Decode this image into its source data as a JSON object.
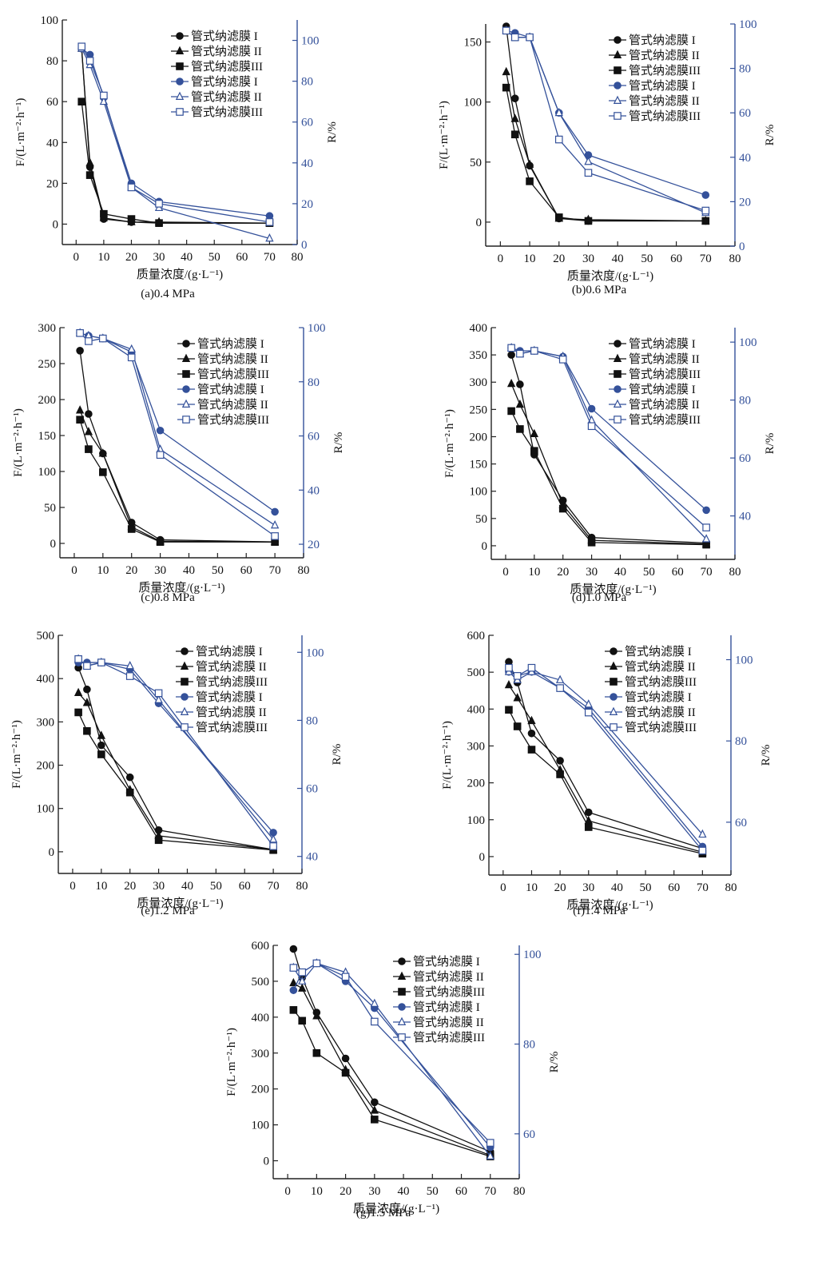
{
  "colors": {
    "black_series": "#111111",
    "blue_series": "#34519a",
    "right_axis": "#34519a"
  },
  "chart_data": [
    {
      "id": "a",
      "type": "line",
      "caption": "(a)0.4 MPa",
      "xlabel": "质量浓度/(g·L⁻¹)",
      "ylabel": "F/(L·m⁻²·h⁻¹)",
      "y2label": "R/%",
      "xlim": [
        -5,
        80
      ],
      "xticks": [
        0,
        10,
        20,
        30,
        40,
        50,
        60,
        70,
        80
      ],
      "ylim": [
        -10,
        100
      ],
      "yticks": [
        0,
        20,
        40,
        60,
        80,
        100
      ],
      "y2lim": [
        0,
        110
      ],
      "y2ticks": [
        0,
        20,
        40,
        60,
        80,
        100
      ],
      "legend_position": "top-right",
      "grid": false,
      "x": [
        2,
        5,
        10,
        20,
        30,
        70
      ],
      "series": [
        {
          "name": "管式纳滤膜 I",
          "axis": "left",
          "marker": "circle-filled",
          "values": [
            86,
            28,
            2.5,
            1,
            0.5,
            0.5
          ]
        },
        {
          "name": "管式纳滤膜 II",
          "axis": "left",
          "marker": "triangle-filled",
          "values": [
            86,
            30,
            3,
            1,
            1,
            0.5
          ]
        },
        {
          "name": "管式纳滤膜III",
          "axis": "left",
          "marker": "square-filled",
          "values": [
            60,
            24,
            5,
            2.5,
            0.5,
            0.5
          ]
        },
        {
          "name": "管式纳滤膜 I",
          "axis": "right",
          "marker": "circle-filled",
          "values": [
            96,
            93,
            72,
            30,
            21,
            14
          ]
        },
        {
          "name": "管式纳滤膜 II",
          "axis": "right",
          "marker": "triangle-open",
          "values": [
            96,
            88,
            70,
            28,
            18,
            3
          ]
        },
        {
          "name": "管式纳滤膜III",
          "axis": "right",
          "marker": "square-open",
          "values": [
            97,
            90,
            73,
            28,
            20,
            11
          ]
        }
      ]
    },
    {
      "id": "b",
      "type": "line",
      "caption": "(b)0.6 MPa",
      "xlabel": "质量浓度/(g·L⁻¹)",
      "ylabel": "F/(L·m⁻²·h⁻¹)",
      "y2label": "R/%",
      "xlim": [
        -5,
        80
      ],
      "xticks": [
        0,
        10,
        20,
        30,
        40,
        50,
        60,
        70,
        80
      ],
      "ylim": [
        -20,
        165
      ],
      "yticks": [
        0,
        50,
        100,
        150
      ],
      "y2lim": [
        0,
        100
      ],
      "y2ticks": [
        0,
        20,
        40,
        60,
        80,
        100
      ],
      "legend_position": "top-right",
      "grid": false,
      "x": [
        2,
        5,
        10,
        20,
        30,
        70
      ],
      "series": [
        {
          "name": "管式纳滤膜 I",
          "axis": "left",
          "marker": "circle-filled",
          "values": [
            163,
            103,
            47,
            3,
            1,
            1
          ]
        },
        {
          "name": "管式纳滤膜 II",
          "axis": "left",
          "marker": "triangle-filled",
          "values": [
            125,
            86,
            48,
            3,
            2,
            1
          ]
        },
        {
          "name": "管式纳滤膜III",
          "axis": "left",
          "marker": "square-filled",
          "values": [
            112,
            73,
            34,
            4,
            1,
            1
          ]
        },
        {
          "name": "管式纳滤膜 I",
          "axis": "right",
          "marker": "circle-filled",
          "values": [
            97,
            96,
            94,
            60,
            41,
            23
          ]
        },
        {
          "name": "管式纳滤膜 II",
          "axis": "right",
          "marker": "triangle-open",
          "values": [
            97,
            94,
            94,
            60,
            38,
            15
          ]
        },
        {
          "name": "管式纳滤膜III",
          "axis": "right",
          "marker": "square-open",
          "values": [
            97,
            94,
            94,
            48,
            33,
            16
          ]
        }
      ]
    },
    {
      "id": "c",
      "type": "line",
      "caption": "(c)0.8 MPa",
      "xlabel": "质量浓度/(g·L⁻¹)",
      "ylabel": "F/(L·m⁻²·h⁻¹)",
      "y2label": "R/%",
      "xlim": [
        -5,
        80
      ],
      "xticks": [
        0,
        10,
        20,
        30,
        40,
        50,
        60,
        70,
        80
      ],
      "ylim": [
        -20,
        300
      ],
      "yticks": [
        0,
        50,
        100,
        150,
        200,
        250,
        300
      ],
      "y2lim": [
        15,
        100
      ],
      "y2ticks": [
        20,
        40,
        60,
        80,
        100
      ],
      "legend_position": "top-right",
      "grid": false,
      "x": [
        2,
        5,
        10,
        20,
        30,
        70
      ],
      "series": [
        {
          "name": "管式纳滤膜 I",
          "axis": "left",
          "marker": "circle-filled",
          "values": [
            268,
            180,
            125,
            29,
            5,
            2
          ]
        },
        {
          "name": "管式纳滤膜 II",
          "axis": "left",
          "marker": "triangle-filled",
          "values": [
            185,
            155,
            125,
            23,
            3,
            2
          ]
        },
        {
          "name": "管式纳滤膜III",
          "axis": "left",
          "marker": "square-filled",
          "values": [
            172,
            131,
            99,
            20,
            2,
            2
          ]
        },
        {
          "name": "管式纳滤膜 I",
          "axis": "right",
          "marker": "circle-filled",
          "values": [
            98,
            97,
            96,
            91,
            62,
            32
          ]
        },
        {
          "name": "管式纳滤膜 II",
          "axis": "right",
          "marker": "triangle-open",
          "values": [
            98,
            97,
            96,
            92,
            55,
            27
          ]
        },
        {
          "name": "管式纳滤膜III",
          "axis": "right",
          "marker": "square-open",
          "values": [
            98,
            95,
            96,
            89,
            53,
            23
          ]
        }
      ]
    },
    {
      "id": "d",
      "type": "line",
      "caption": "(d)1.0 MPa",
      "xlabel": "质量浓度/(g·L⁻¹)",
      "ylabel": "F/(L·m⁻²·h⁻¹)",
      "y2label": "R/%",
      "xlim": [
        -5,
        80
      ],
      "xticks": [
        0,
        10,
        20,
        30,
        40,
        50,
        60,
        70,
        80
      ],
      "ylim": [
        -25,
        400
      ],
      "yticks": [
        0,
        50,
        100,
        150,
        200,
        250,
        300,
        350,
        400
      ],
      "y2lim": [
        25,
        105
      ],
      "y2ticks": [
        40,
        60,
        80,
        100
      ],
      "legend_position": "top-right",
      "grid": false,
      "x": [
        2,
        5,
        10,
        20,
        30,
        70
      ],
      "series": [
        {
          "name": "管式纳滤膜 I",
          "axis": "left",
          "marker": "circle-filled",
          "values": [
            350,
            296,
            167,
            83,
            15,
            5
          ]
        },
        {
          "name": "管式纳滤膜 II",
          "axis": "left",
          "marker": "triangle-filled",
          "values": [
            297,
            259,
            205,
            75,
            10,
            3
          ]
        },
        {
          "name": "管式纳滤膜III",
          "axis": "left",
          "marker": "square-filled",
          "values": [
            247,
            214,
            174,
            68,
            6,
            2
          ]
        },
        {
          "name": "管式纳滤膜 I",
          "axis": "right",
          "marker": "circle-filled",
          "values": [
            98,
            97,
            97,
            95,
            77,
            42
          ]
        },
        {
          "name": "管式纳滤膜 II",
          "axis": "right",
          "marker": "triangle-open",
          "values": [
            98,
            96,
            97,
            95,
            73,
            32
          ]
        },
        {
          "name": "管式纳滤膜III",
          "axis": "right",
          "marker": "square-open",
          "values": [
            98,
            96,
            97,
            94,
            71,
            36
          ]
        }
      ]
    },
    {
      "id": "e",
      "type": "line",
      "caption": "(e)1.2 MPa",
      "xlabel": "质量浓度/(g·L⁻¹)",
      "ylabel": "F/(L·m⁻²·h⁻¹)",
      "y2label": "R/%",
      "xlim": [
        -5,
        80
      ],
      "xticks": [
        0,
        10,
        20,
        30,
        40,
        50,
        60,
        70,
        80
      ],
      "ylim": [
        -50,
        500
      ],
      "yticks": [
        0,
        100,
        200,
        300,
        400,
        500
      ],
      "y2lim": [
        35,
        105
      ],
      "y2ticks": [
        40,
        60,
        80,
        100
      ],
      "legend_position": "top-right",
      "grid": false,
      "x": [
        2,
        5,
        10,
        20,
        30,
        70
      ],
      "series": [
        {
          "name": "管式纳滤膜 I",
          "axis": "left",
          "marker": "circle-filled",
          "values": [
            425,
            375,
            246,
            172,
            50,
            5
          ]
        },
        {
          "name": "管式纳滤膜 II",
          "axis": "left",
          "marker": "triangle-filled",
          "values": [
            367,
            344,
            268,
            143,
            37,
            5
          ]
        },
        {
          "name": "管式纳滤膜III",
          "axis": "left",
          "marker": "square-filled",
          "values": [
            322,
            279,
            225,
            137,
            27,
            4
          ]
        },
        {
          "name": "管式纳滤膜 I",
          "axis": "right",
          "marker": "circle-filled",
          "values": [
            97,
            97,
            97,
            95,
            85,
            47
          ]
        },
        {
          "name": "管式纳滤膜 II",
          "axis": "right",
          "marker": "triangle-open",
          "values": [
            98,
            96,
            97,
            96,
            86,
            45
          ]
        },
        {
          "name": "管式纳滤膜III",
          "axis": "right",
          "marker": "square-open",
          "values": [
            98,
            96,
            97,
            93,
            88,
            43
          ]
        }
      ]
    },
    {
      "id": "f",
      "type": "line",
      "caption": "(f)1.4 MPa",
      "xlabel": "质量浓度/(g·L⁻¹)",
      "ylabel": "F/(L·m⁻²·h⁻¹)",
      "y2label": "R/%",
      "xlim": [
        -5,
        80
      ],
      "xticks": [
        0,
        10,
        20,
        30,
        40,
        50,
        60,
        70,
        80
      ],
      "ylim": [
        -50,
        600
      ],
      "yticks": [
        0,
        100,
        200,
        300,
        400,
        500,
        600
      ],
      "y2lim": [
        47,
        106
      ],
      "y2ticks": [
        60,
        80,
        100
      ],
      "legend_position": "top-right",
      "grid": false,
      "x": [
        2,
        5,
        10,
        20,
        30,
        70
      ],
      "series": [
        {
          "name": "管式纳滤膜 I",
          "axis": "left",
          "marker": "circle-filled",
          "values": [
            528,
            472,
            334,
            260,
            120,
            22
          ]
        },
        {
          "name": "管式纳滤膜 II",
          "axis": "left",
          "marker": "triangle-filled",
          "values": [
            465,
            430,
            368,
            235,
            97,
            12
          ]
        },
        {
          "name": "管式纳滤膜III",
          "axis": "left",
          "marker": "square-filled",
          "values": [
            398,
            353,
            290,
            223,
            80,
            8
          ]
        },
        {
          "name": "管式纳滤膜 I",
          "axis": "right",
          "marker": "circle-filled",
          "values": [
            97,
            96,
            97,
            93,
            88,
            54
          ]
        },
        {
          "name": "管式纳滤膜 II",
          "axis": "right",
          "marker": "triangle-open",
          "values": [
            97,
            95,
            97,
            95,
            89,
            57
          ]
        },
        {
          "name": "管式纳滤膜III",
          "axis": "right",
          "marker": "square-open",
          "values": [
            98,
            96,
            98,
            93,
            87,
            53
          ]
        }
      ]
    },
    {
      "id": "g",
      "type": "line",
      "caption": "(g)1.5 MPa",
      "xlabel": "质量浓度/(g·L⁻¹)",
      "ylabel": "F/(L·m⁻²·h⁻¹)",
      "y2label": "R/%",
      "xlim": [
        -5,
        80
      ],
      "xticks": [
        0,
        10,
        20,
        30,
        40,
        50,
        60,
        70,
        80
      ],
      "ylim": [
        -50,
        600
      ],
      "yticks": [
        0,
        100,
        200,
        300,
        400,
        500,
        600
      ],
      "y2lim": [
        50,
        102
      ],
      "y2ticks": [
        60,
        80,
        100
      ],
      "legend_position": "top-right",
      "grid": false,
      "x": [
        2,
        5,
        10,
        20,
        30,
        70
      ],
      "series": [
        {
          "name": "管式纳滤膜 I",
          "axis": "left",
          "marker": "circle-filled",
          "values": [
            590,
            510,
            413,
            285,
            163,
            25
          ]
        },
        {
          "name": "管式纳滤膜 II",
          "axis": "left",
          "marker": "triangle-filled",
          "values": [
            495,
            480,
            403,
            253,
            140,
            15
          ]
        },
        {
          "name": "管式纳滤膜III",
          "axis": "left",
          "marker": "square-filled",
          "values": [
            420,
            390,
            300,
            245,
            115,
            12
          ]
        },
        {
          "name": "管式纳滤膜 I",
          "axis": "right",
          "marker": "circle-filled",
          "values": [
            92,
            96,
            98,
            94,
            88,
            57
          ]
        },
        {
          "name": "管式纳滤膜 II",
          "axis": "right",
          "marker": "triangle-open",
          "values": [
            97,
            94,
            98,
            96,
            89,
            55
          ]
        },
        {
          "name": "管式纳滤膜III",
          "axis": "right",
          "marker": "square-open",
          "values": [
            97,
            96,
            98,
            95,
            85,
            58
          ]
        }
      ]
    }
  ]
}
